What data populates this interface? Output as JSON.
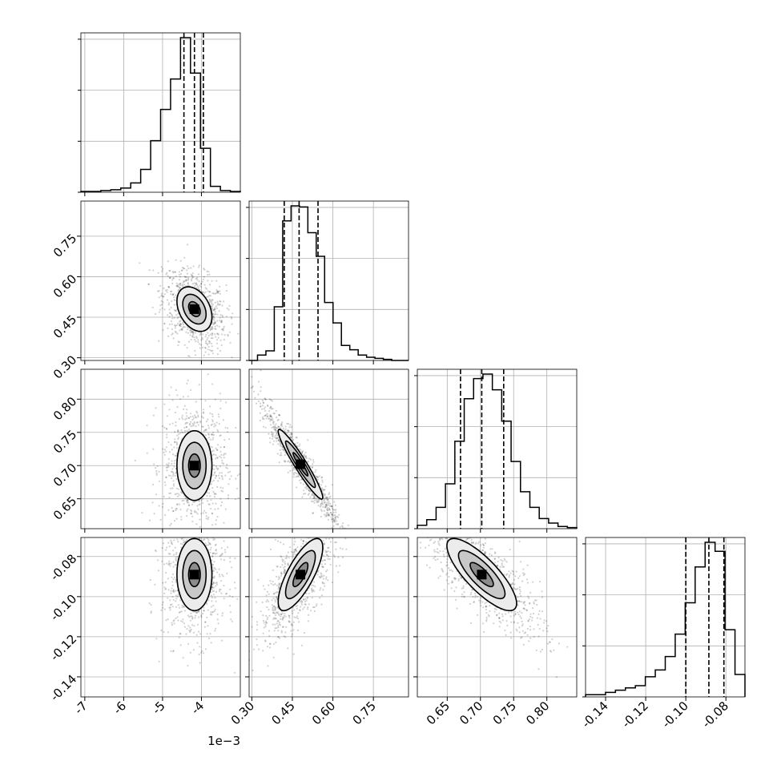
{
  "chart_data": {
    "type": "corner",
    "n_params": 4,
    "grid": true,
    "params": [
      {
        "range": [
          -7.1,
          -3.0
        ],
        "ticks": [
          "-7",
          "-6",
          "-5",
          "-4"
        ],
        "tick_values": [
          -7,
          -6,
          -5,
          -4
        ],
        "offset_text": "1e−3",
        "scale_note": "axis values are multiples of 1e-3",
        "quantiles": [
          -4.45,
          -4.18,
          -3.95
        ]
      },
      {
        "range": [
          0.29,
          0.88
        ],
        "ticks": [
          "0.30",
          "0.45",
          "0.60",
          "0.75"
        ],
        "tick_values": [
          0.3,
          0.45,
          0.6,
          0.75
        ],
        "quantiles": [
          0.42,
          0.475,
          0.545
        ]
      },
      {
        "range": [
          0.605,
          0.845
        ],
        "ticks": [
          "0.65",
          "0.70",
          "0.75",
          "0.80"
        ],
        "tick_values": [
          0.65,
          0.7,
          0.75,
          0.8
        ],
        "quantiles": [
          0.67,
          0.702,
          0.735
        ]
      },
      {
        "range": [
          -0.15,
          -0.0705
        ],
        "ticks": [
          "-0.14",
          "-0.12",
          "-0.10",
          "-0.08"
        ],
        "tick_values": [
          -0.14,
          -0.12,
          -0.1,
          -0.08
        ],
        "quantiles": [
          -0.1,
          -0.0885,
          -0.081
        ]
      }
    ],
    "histograms": [
      {
        "counts": [
          1,
          1,
          2,
          3,
          5,
          11,
          27,
          61,
          98,
          134,
          183,
          141,
          52,
          7,
          2,
          1
        ]
      },
      {
        "counts": [
          0,
          5,
          9,
          50,
          130,
          144,
          143,
          119,
          97,
          54,
          35,
          14,
          10,
          5,
          3,
          2,
          1,
          0,
          0
        ]
      },
      {
        "counts": [
          3,
          8,
          19,
          40,
          78,
          116,
          134,
          138,
          124,
          96,
          60,
          33,
          19,
          9,
          5,
          2,
          1
        ]
      },
      {
        "counts": [
          1,
          1,
          2,
          3,
          4,
          5,
          9,
          12,
          18,
          28,
          42,
          58,
          69,
          65,
          30,
          10
        ]
      }
    ],
    "pairs": [
      {
        "x": 0,
        "y": 1,
        "center": [
          -4.18,
          0.48
        ],
        "spread": [
          0.3,
          0.055
        ],
        "correlation": -0.35
      },
      {
        "x": 0,
        "y": 2,
        "center": [
          -4.18,
          0.7
        ],
        "spread": [
          0.3,
          0.035
        ],
        "correlation": 0.0
      },
      {
        "x": 1,
        "y": 2,
        "center": [
          0.48,
          0.702
        ],
        "spread": [
          0.055,
          0.035
        ],
        "correlation": -0.95
      },
      {
        "x": 0,
        "y": 3,
        "center": [
          -4.18,
          -0.089
        ],
        "spread": [
          0.3,
          0.012
        ],
        "correlation": 0.0
      },
      {
        "x": 1,
        "y": 3,
        "center": [
          0.48,
          -0.089
        ],
        "spread": [
          0.055,
          0.012
        ],
        "correlation": 0.75
      },
      {
        "x": 2,
        "y": 3,
        "center": [
          0.702,
          -0.089
        ],
        "spread": [
          0.035,
          0.012
        ],
        "correlation": -0.8
      }
    ]
  }
}
